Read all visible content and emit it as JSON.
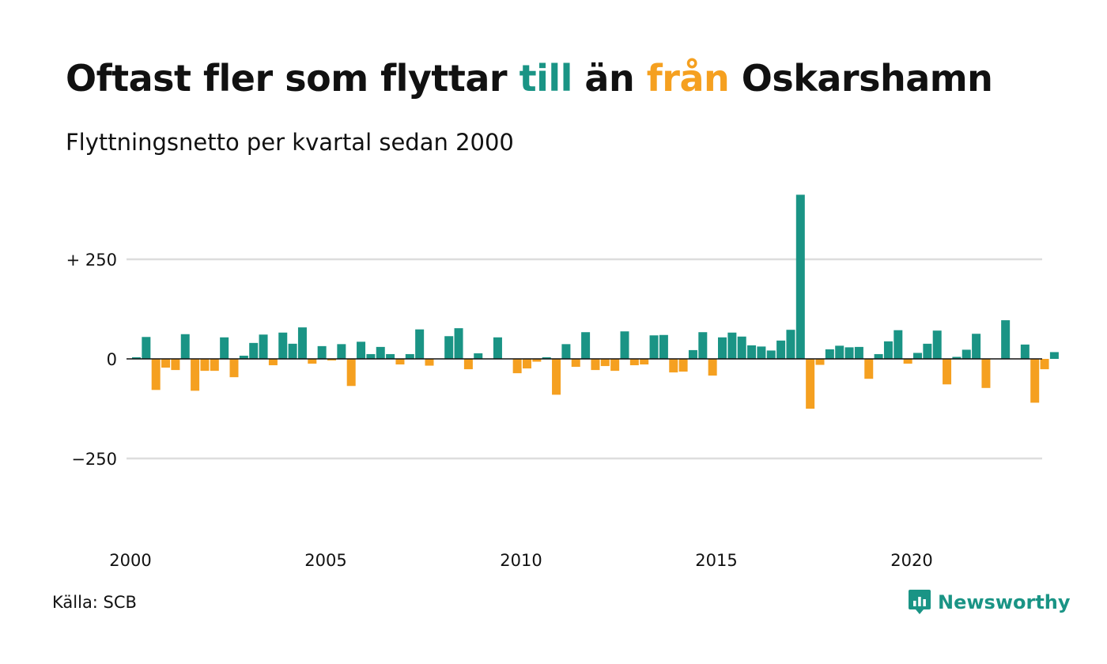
{
  "header": {
    "title_parts": [
      "Oftast fler som flyttar ",
      "till",
      " än ",
      "från",
      " Oskarshamn"
    ],
    "subtitle": "Flyttningsnetto per kvartal sedan 2000"
  },
  "footer": {
    "source": "Källa: SCB",
    "brand": "Newsworthy",
    "brand_icon": "newsworthy-logo-icon"
  },
  "colors": {
    "positive": "#1a9485",
    "negative": "#f5a020",
    "grid": "#dddddd",
    "axis": "#111111"
  },
  "chart_data": {
    "type": "bar",
    "x_start": "2000 Q1",
    "ylim": [
      -400,
      420
    ],
    "yticks": [
      250,
      0,
      -250
    ],
    "ytick_labels": [
      "+ 250",
      "0",
      "−250"
    ],
    "xtick_labels": [
      "2000",
      "2005",
      "2010",
      "2015",
      "2020"
    ],
    "grid": true,
    "legend": "none",
    "values": [
      4,
      55,
      -78,
      -22,
      -28,
      62,
      -80,
      -30,
      -30,
      54,
      -46,
      8,
      40,
      61,
      -16,
      66,
      38,
      79,
      -12,
      32,
      -4,
      37,
      -68,
      43,
      12,
      30,
      12,
      -14,
      12,
      74,
      -17,
      0,
      57,
      77,
      -26,
      14,
      0,
      54,
      0,
      -36,
      -24,
      -7,
      4,
      -90,
      37,
      -20,
      67,
      -28,
      -18,
      -30,
      69,
      -16,
      -14,
      59,
      60,
      -34,
      -32,
      22,
      67,
      -42,
      54,
      66,
      56,
      34,
      31,
      21,
      46,
      73,
      412,
      -125,
      -15,
      24,
      33,
      29,
      30,
      -50,
      12,
      44,
      72,
      -12,
      15,
      38,
      71,
      -64,
      5,
      23,
      63,
      -73,
      0,
      97,
      0,
      36,
      -110,
      -26,
      17
    ]
  }
}
